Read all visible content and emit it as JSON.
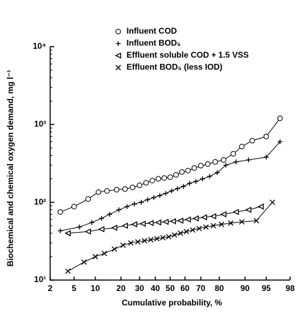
{
  "chart_data": {
    "type": "line",
    "x_label": "Cumulative probability, %",
    "y_label": "Biochemical and chemical oxygen demand, mg l⁻¹",
    "x_scale": "probability",
    "y_scale": "log",
    "xlim": [
      2,
      98
    ],
    "xticks": [
      2,
      5,
      10,
      20,
      30,
      40,
      50,
      60,
      70,
      80,
      90,
      95,
      98
    ],
    "ylim": [
      10,
      10000
    ],
    "yticks": [
      {
        "value": 10,
        "label": "10¹"
      },
      {
        "value": 100,
        "label": "10²"
      },
      {
        "value": 1000,
        "label": "10³"
      },
      {
        "value": 10000,
        "label": "10⁴"
      }
    ],
    "series": [
      {
        "name": "Influent COD",
        "color": "#000000",
        "marker": "circle",
        "x": [
          3,
          5,
          8,
          11,
          14,
          18,
          22,
          26,
          30,
          34,
          38,
          42,
          46,
          50,
          54,
          58,
          62,
          66,
          70,
          74,
          78,
          82,
          86,
          89,
          92,
          95,
          97
        ],
        "values": [
          75,
          88,
          110,
          135,
          140,
          145,
          148,
          155,
          165,
          178,
          190,
          200,
          205,
          210,
          225,
          245,
          255,
          275,
          295,
          310,
          330,
          350,
          420,
          520,
          620,
          700,
          1200
        ]
      },
      {
        "name": "Influent BOD₅",
        "color": "#000000",
        "marker": "plus",
        "x": [
          3,
          6,
          9,
          12,
          15,
          19,
          23,
          27,
          31,
          35,
          39,
          43,
          47,
          51,
          55,
          59,
          63,
          67,
          71,
          75,
          79,
          83,
          87,
          91,
          95,
          97
        ],
        "values": [
          43,
          48,
          55,
          62,
          70,
          80,
          88,
          95,
          100,
          108,
          115,
          122,
          130,
          140,
          150,
          160,
          175,
          185,
          200,
          215,
          240,
          300,
          330,
          350,
          380,
          600
        ]
      },
      {
        "name": "Effluent soluble COD + 1.5 VSS",
        "color": "#000000",
        "marker": "triangle-left",
        "x": [
          4,
          8,
          12,
          17,
          22,
          27,
          32,
          37,
          42,
          47,
          52,
          57,
          62,
          67,
          72,
          77,
          82,
          87,
          91,
          94
        ],
        "values": [
          40,
          42,
          45,
          47,
          50,
          52,
          53,
          54,
          55,
          56,
          57,
          58,
          60,
          62,
          64,
          66,
          70,
          75,
          80,
          88
        ]
      },
      {
        "name": "Effluent BOD₅ (less IOD)",
        "color": "#000000",
        "marker": "cross",
        "x": [
          4,
          7,
          10,
          13,
          17,
          21,
          25,
          29,
          33,
          37,
          41,
          45,
          49,
          53,
          57,
          61,
          65,
          69,
          73,
          77,
          81,
          85,
          89,
          93,
          96
        ],
        "values": [
          13,
          17,
          20,
          22,
          25,
          28,
          30,
          31,
          32,
          33,
          34,
          35,
          36,
          38,
          40,
          42,
          44,
          46,
          48,
          50,
          52,
          54,
          56,
          58,
          100
        ]
      }
    ]
  }
}
